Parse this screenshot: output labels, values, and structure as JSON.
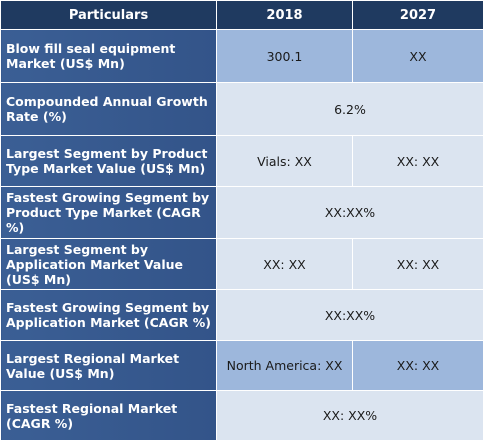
{
  "header": {
    "particulars": "Particulars",
    "year1": "2018",
    "year2": "2027"
  },
  "rows": [
    {
      "label": "Blow fill seal equipment Market (US$ Mn)",
      "v1": "300.1",
      "v2": "XX"
    },
    {
      "label": "Compounded Annual Growth Rate (%)",
      "merged": "6.2%"
    },
    {
      "label": "Largest Segment by Product Type Market Value (US$ Mn)",
      "v1": "Vials: XX",
      "v2": "XX: XX"
    },
    {
      "label": "Fastest Growing Segment by Product Type Market (CAGR %)",
      "merged": "XX:XX%"
    },
    {
      "label": "Largest Segment by Application Market Value (US$ Mn)",
      "v1": "XX: XX",
      "v2": "XX: XX"
    },
    {
      "label": "Fastest Growing Segment by Application Market (CAGR %)",
      "merged": "XX:XX%"
    },
    {
      "label": "Largest Regional Market Value (US$ Mn)",
      "v1": "North America: XX",
      "v2": "XX: XX"
    },
    {
      "label": "Fastest Regional Market (CAGR %)",
      "merged": "XX: XX%"
    }
  ],
  "colors": {
    "header_bg": "#1f3a60",
    "label_bg": "#3b5f95",
    "cell_blue": "#9db7dc",
    "cell_light": "#dbe4f0"
  }
}
